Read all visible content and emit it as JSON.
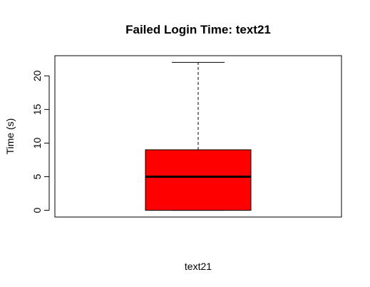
{
  "chart_data": {
    "type": "box",
    "title": "Failed Login Time: text21",
    "xlabel": "text21",
    "ylabel": "Time (s)",
    "ylim": [
      -1,
      23
    ],
    "yticks": [
      0,
      5,
      10,
      15,
      20
    ],
    "ytick_labels": [
      "0",
      "5",
      "10",
      "15",
      "20"
    ],
    "categories": [
      "text21"
    ],
    "series": [
      {
        "min": 0,
        "q1": 0,
        "median": 5,
        "q3": 9,
        "max": 22,
        "color": "#ff0000"
      }
    ],
    "grid": false,
    "legend": "none"
  }
}
